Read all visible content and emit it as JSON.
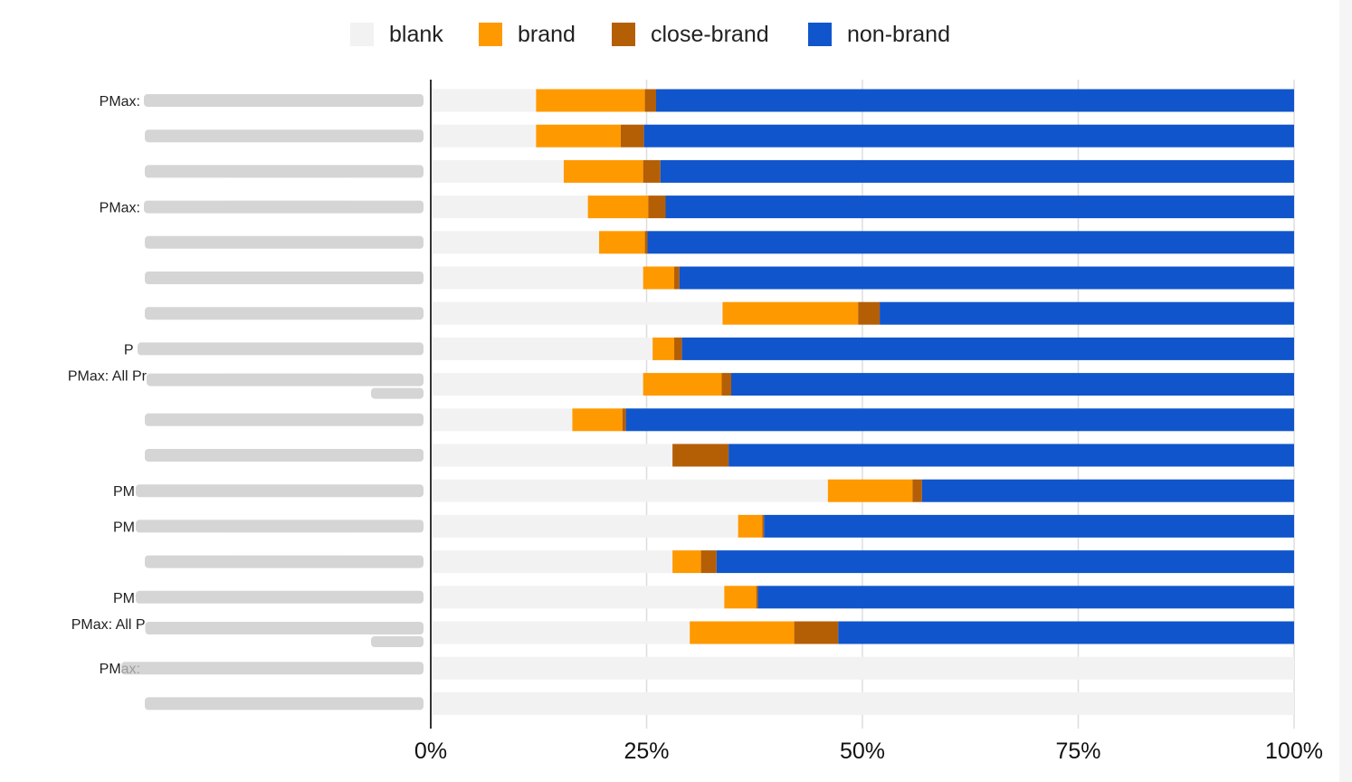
{
  "colors": {
    "blank": "#f2f2f2",
    "brand": "#ff9900",
    "close-brand": "#b45f06",
    "non-brand": "#1155cc",
    "grid": "#dddddd",
    "axis": "#333333"
  },
  "chart_data": {
    "type": "bar",
    "orientation": "horizontal",
    "stacked": "percent",
    "legend_position": "top",
    "xlim": [
      0,
      100
    ],
    "x_ticks": [
      "0%",
      "25%",
      "50%",
      "75%",
      "100%"
    ],
    "x_tick_values": [
      0,
      25,
      50,
      75,
      100
    ],
    "grid": true,
    "title": "",
    "xlabel": "",
    "ylabel": "",
    "categories": [
      "PMax: ",
      "",
      "",
      "PMax: ",
      "",
      "",
      "",
      "P",
      "PMax: All Pr",
      "",
      "",
      "PM",
      "PM",
      "",
      "PM",
      "PMax: All P",
      "PMax: ",
      ""
    ],
    "series": [
      {
        "name": "blank",
        "values": [
          12.2,
          12.2,
          15.4,
          18.2,
          19.5,
          24.6,
          33.8,
          25.7,
          24.6,
          16.4,
          28.0,
          46.0,
          35.6,
          28.0,
          34.0,
          30.0,
          100,
          100
        ]
      },
      {
        "name": "brand",
        "values": [
          12.6,
          9.8,
          9.2,
          7.0,
          5.3,
          3.6,
          15.7,
          2.5,
          9.1,
          5.8,
          0.0,
          9.8,
          2.8,
          3.3,
          3.7,
          12.1,
          0,
          0
        ]
      },
      {
        "name": "close-brand",
        "values": [
          1.3,
          2.7,
          2.0,
          2.0,
          0.3,
          0.6,
          2.5,
          0.9,
          1.1,
          0.4,
          6.5,
          1.1,
          0.2,
          1.8,
          0.2,
          5.1,
          0,
          0
        ]
      },
      {
        "name": "non-brand",
        "values": [
          73.9,
          75.3,
          73.4,
          72.8,
          74.9,
          71.2,
          48.0,
          70.9,
          65.2,
          77.4,
          65.5,
          43.1,
          61.4,
          66.9,
          62.1,
          52.8,
          0,
          0
        ]
      }
    ]
  }
}
